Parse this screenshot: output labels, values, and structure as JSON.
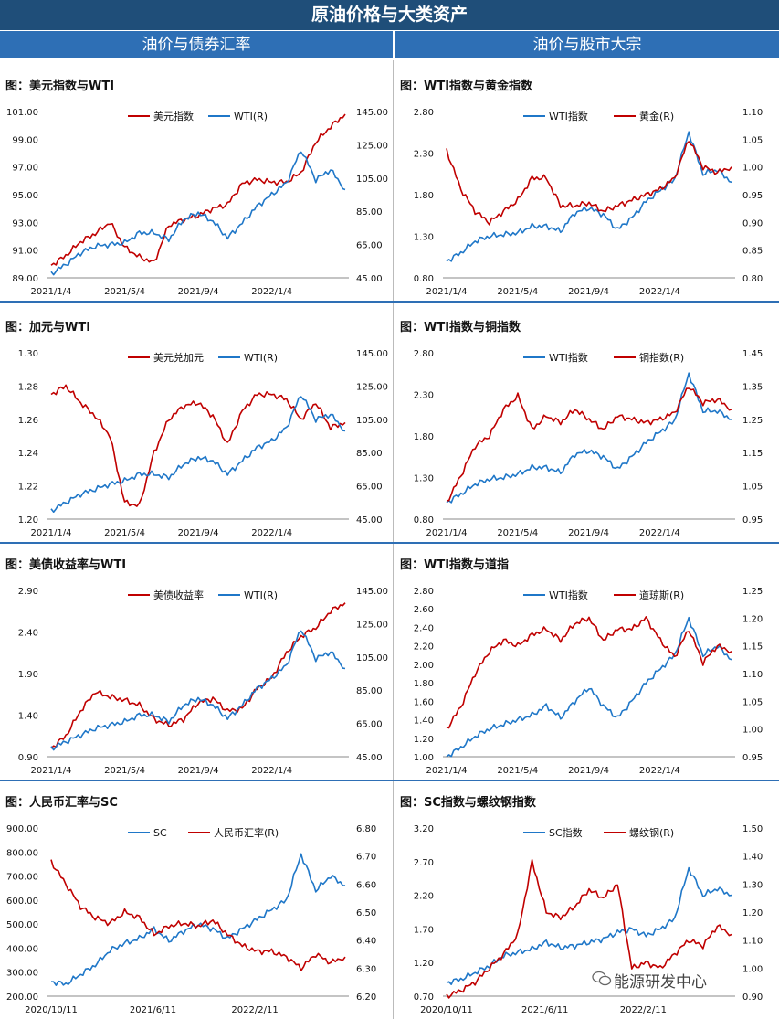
{
  "banner": "原油价格与大类资产",
  "sections": {
    "left": "油价与债券汇率",
    "right": "油价与股市大宗"
  },
  "watermark": "能源研发中心",
  "colors": {
    "red": "#c00000",
    "blue": "#1f77c8"
  },
  "chart_data": [
    {
      "id": "c1",
      "type": "line",
      "title": "图：美元指数与WTI",
      "series": [
        {
          "name": "美元指数",
          "axis": "left",
          "color": "#c00000",
          "values": [
            89.9,
            90.6,
            91.6,
            92.2,
            93.0,
            91.2,
            90.5,
            90.1,
            92.8,
            93.2,
            93.5,
            94.0,
            94.3,
            95.8,
            96.1,
            95.9,
            95.9,
            96.6,
            98.8,
            99.9,
            100.8
          ]
        },
        {
          "name": "WTI(R)",
          "axis": "right",
          "color": "#1f77c8",
          "values": [
            47.5,
            53,
            60,
            64,
            65,
            66,
            72,
            72,
            68,
            80,
            84,
            79,
            69,
            78,
            88,
            95,
            102,
            122,
            104,
            110,
            98
          ]
        }
      ],
      "left_ticks": [
        "89.00",
        "91.00",
        "93.00",
        "95.00",
        "97.00",
        "99.00",
        "101.00"
      ],
      "right_ticks": [
        "45.00",
        "65.00",
        "85.00",
        "105.00",
        "125.00",
        "145.00"
      ],
      "x_ticks": [
        "2021/1/4",
        "2021/5/4",
        "2021/9/4",
        "2022/1/4"
      ],
      "ylim_left": [
        89,
        101
      ],
      "ylim_right": [
        45,
        145
      ]
    },
    {
      "id": "c2",
      "type": "line",
      "title": "图：WTI指数与黄金指数",
      "series": [
        {
          "name": "WTI指数",
          "axis": "left",
          "color": "#1f77c8",
          "values": [
            1.0,
            1.1,
            1.24,
            1.3,
            1.32,
            1.34,
            1.42,
            1.42,
            1.36,
            1.58,
            1.64,
            1.56,
            1.38,
            1.52,
            1.72,
            1.85,
            1.98,
            2.55,
            2.05,
            2.1,
            1.95
          ]
        },
        {
          "name": "黄金(R)",
          "axis": "right",
          "color": "#c00000",
          "values": [
            1.03,
            0.96,
            0.92,
            0.9,
            0.92,
            0.94,
            0.98,
            0.98,
            0.93,
            0.93,
            0.935,
            0.92,
            0.93,
            0.94,
            0.95,
            0.96,
            0.98,
            1.05,
            1.0,
            0.99,
            1.0
          ]
        }
      ],
      "left_ticks": [
        "0.80",
        "1.30",
        "1.80",
        "2.30",
        "2.80"
      ],
      "right_ticks": [
        "0.80",
        "0.85",
        "0.90",
        "0.95",
        "1.00",
        "1.05",
        "1.10"
      ],
      "x_ticks": [
        "2021/1/4",
        "2021/5/4",
        "2021/9/4",
        "2022/1/4"
      ],
      "ylim_left": [
        0.8,
        2.8
      ],
      "ylim_right": [
        0.8,
        1.1
      ]
    },
    {
      "id": "c3",
      "type": "line",
      "title": "图：加元与WTI",
      "series": [
        {
          "name": "美元兑加元",
          "axis": "left",
          "color": "#c00000",
          "values": [
            1.275,
            1.28,
            1.27,
            1.262,
            1.25,
            1.21,
            1.208,
            1.24,
            1.26,
            1.268,
            1.27,
            1.262,
            1.245,
            1.265,
            1.275,
            1.275,
            1.272,
            1.26,
            1.27,
            1.255,
            1.258
          ]
        },
        {
          "name": "WTI(R)",
          "axis": "right",
          "color": "#1f77c8",
          "values": [
            50,
            55,
            60,
            63,
            66,
            68,
            72,
            72,
            70,
            78,
            82,
            80,
            72,
            80,
            88,
            92,
            100,
            120,
            105,
            108,
            98
          ]
        }
      ],
      "left_ticks": [
        "1.20",
        "1.22",
        "1.24",
        "1.26",
        "1.28",
        "1.30"
      ],
      "right_ticks": [
        "45.00",
        "65.00",
        "85.00",
        "105.00",
        "125.00",
        "145.00"
      ],
      "x_ticks": [
        "2021/1/4",
        "2021/5/4",
        "2021/9/4",
        "2022/1/4"
      ],
      "ylim_left": [
        1.2,
        1.3
      ],
      "ylim_right": [
        45,
        145
      ]
    },
    {
      "id": "c4",
      "type": "line",
      "title": "图：WTI指数与铜指数",
      "series": [
        {
          "name": "WTI指数",
          "axis": "left",
          "color": "#1f77c8",
          "values": [
            1.0,
            1.1,
            1.22,
            1.28,
            1.3,
            1.34,
            1.42,
            1.42,
            1.36,
            1.58,
            1.62,
            1.55,
            1.4,
            1.55,
            1.72,
            1.85,
            1.98,
            2.55,
            2.1,
            2.1,
            2.0
          ]
        },
        {
          "name": "铜指数(R)",
          "axis": "right",
          "color": "#c00000",
          "values": [
            1.0,
            1.08,
            1.17,
            1.2,
            1.28,
            1.32,
            1.22,
            1.26,
            1.24,
            1.28,
            1.25,
            1.22,
            1.26,
            1.25,
            1.24,
            1.25,
            1.27,
            1.35,
            1.3,
            1.31,
            1.28
          ]
        }
      ],
      "left_ticks": [
        "0.80",
        "1.30",
        "1.80",
        "2.30",
        "2.80"
      ],
      "right_ticks": [
        "0.95",
        "1.05",
        "1.15",
        "1.25",
        "1.35",
        "1.45"
      ],
      "x_ticks": [
        "2021/1/4",
        "2021/5/4",
        "2021/9/4",
        "2022/1/4"
      ],
      "ylim_left": [
        0.8,
        2.8
      ],
      "ylim_right": [
        0.95,
        1.45
      ]
    },
    {
      "id": "c5",
      "type": "line",
      "title": "图：美债收益率与WTI",
      "series": [
        {
          "name": "美债收益率",
          "axis": "left",
          "color": "#c00000",
          "values": [
            1.0,
            1.15,
            1.45,
            1.68,
            1.62,
            1.58,
            1.52,
            1.35,
            1.28,
            1.35,
            1.55,
            1.6,
            1.45,
            1.48,
            1.72,
            1.85,
            2.15,
            2.35,
            2.45,
            2.65,
            2.75
          ]
        },
        {
          "name": "WTI(R)",
          "axis": "right",
          "color": "#1f77c8",
          "values": [
            50,
            54,
            58,
            62,
            64,
            66,
            70,
            70,
            66,
            76,
            80,
            76,
            68,
            76,
            86,
            92,
            100,
            122,
            104,
            108,
            98
          ]
        }
      ],
      "left_ticks": [
        "0.90",
        "1.40",
        "1.90",
        "2.40",
        "2.90"
      ],
      "right_ticks": [
        "45.00",
        "65.00",
        "85.00",
        "105.00",
        "125.00",
        "145.00"
      ],
      "x_ticks": [
        "2021/1/4",
        "2021/5/4",
        "2021/9/4",
        "2022/1/4"
      ],
      "ylim_left": [
        0.9,
        2.9
      ],
      "ylim_right": [
        45,
        145
      ]
    },
    {
      "id": "c6",
      "type": "line",
      "title": "图：WTI指数与道指",
      "series": [
        {
          "name": "WTI指数",
          "axis": "left",
          "color": "#1f77c8",
          "values": [
            1.0,
            1.1,
            1.22,
            1.3,
            1.35,
            1.4,
            1.45,
            1.55,
            1.42,
            1.6,
            1.75,
            1.55,
            1.42,
            1.6,
            1.8,
            1.95,
            2.1,
            2.5,
            2.1,
            2.2,
            2.05
          ]
        },
        {
          "name": "道琼斯(R)",
          "axis": "right",
          "color": "#c00000",
          "values": [
            1.0,
            1.04,
            1.1,
            1.14,
            1.16,
            1.15,
            1.17,
            1.18,
            1.16,
            1.19,
            1.2,
            1.16,
            1.18,
            1.18,
            1.2,
            1.16,
            1.13,
            1.18,
            1.12,
            1.15,
            1.14
          ]
        }
      ],
      "left_ticks": [
        "1.00",
        "1.20",
        "1.40",
        "1.60",
        "1.80",
        "2.00",
        "2.20",
        "2.40",
        "2.60",
        "2.80"
      ],
      "right_ticks": [
        "0.95",
        "1.00",
        "1.05",
        "1.10",
        "1.15",
        "1.20",
        "1.25"
      ],
      "x_ticks": [
        "2021/1/4",
        "2021/5/4",
        "2021/9/4",
        "2022/1/4"
      ],
      "ylim_left": [
        1.0,
        2.8
      ],
      "ylim_right": [
        0.95,
        1.25
      ]
    },
    {
      "id": "c7",
      "type": "line",
      "title": "图：人民币汇率与SC",
      "series": [
        {
          "name": "SC",
          "axis": "left",
          "color": "#1f77c8",
          "values": [
            260,
            250,
            290,
            330,
            390,
            420,
            440,
            480,
            430,
            470,
            500,
            480,
            440,
            480,
            520,
            560,
            600,
            790,
            640,
            700,
            660
          ]
        },
        {
          "name": "人民币汇率(R)",
          "axis": "right",
          "color": "#c00000",
          "values": [
            6.68,
            6.6,
            6.52,
            6.48,
            6.46,
            6.5,
            6.48,
            6.42,
            6.45,
            6.46,
            6.45,
            6.47,
            6.42,
            6.38,
            6.36,
            6.36,
            6.34,
            6.3,
            6.35,
            6.32,
            6.34
          ]
        }
      ],
      "left_ticks": [
        "200.00",
        "300.00",
        "400.00",
        "500.00",
        "600.00",
        "700.00",
        "800.00",
        "900.00"
      ],
      "right_ticks": [
        "6.20",
        "6.30",
        "6.40",
        "6.50",
        "6.60",
        "6.70",
        "6.80"
      ],
      "x_ticks": [
        "2020/10/11",
        "2021/6/11",
        "2022/2/11"
      ],
      "ylim_left": [
        200,
        900
      ],
      "ylim_right": [
        6.2,
        6.8
      ]
    },
    {
      "id": "c8",
      "type": "line",
      "title": "图：SC指数与螺纹钢指数",
      "series": [
        {
          "name": "SC指数",
          "axis": "left",
          "color": "#1f77c8",
          "values": [
            0.9,
            0.95,
            1.05,
            1.15,
            1.3,
            1.35,
            1.4,
            1.5,
            1.42,
            1.45,
            1.5,
            1.55,
            1.65,
            1.7,
            1.6,
            1.7,
            1.85,
            2.6,
            2.2,
            2.3,
            2.2
          ]
        },
        {
          "name": "螺纹钢(R)",
          "axis": "right",
          "color": "#c00000",
          "values": [
            0.9,
            0.92,
            0.95,
            1.0,
            1.05,
            1.12,
            1.38,
            1.2,
            1.18,
            1.22,
            1.28,
            1.25,
            1.3,
            1.0,
            1.02,
            1.0,
            1.05,
            1.1,
            1.08,
            1.15,
            1.12
          ]
        }
      ],
      "left_ticks": [
        "0.70",
        "1.20",
        "1.70",
        "2.20",
        "2.70",
        "3.20"
      ],
      "right_ticks": [
        "0.90",
        "1.00",
        "1.10",
        "1.20",
        "1.30",
        "1.40",
        "1.50"
      ],
      "x_ticks": [
        "2020/10/11",
        "2021/6/11",
        "2022/2/11"
      ],
      "ylim_left": [
        0.7,
        3.2
      ],
      "ylim_right": [
        0.9,
        1.5
      ]
    }
  ]
}
